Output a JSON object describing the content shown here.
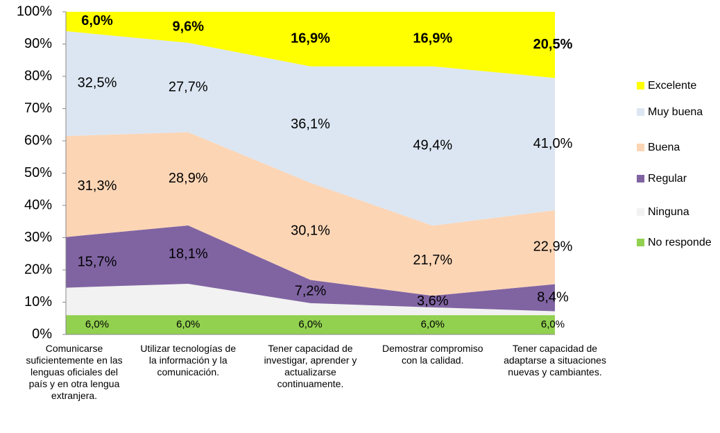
{
  "chart_data": {
    "type": "stacked_area",
    "categories": [
      "Comunicarse suficientemente en las lenguas oficiales del país y en otra lengua extranjera.",
      "Utilizar tecnologías de la información y la comunicación.",
      "Tener capacidad de investigar, aprender y actualizarse continuamente.",
      "Demostrar compromiso con la calidad.",
      "Tener capacidad de adaptarse a situaciones nuevas y cambiantes."
    ],
    "series": [
      {
        "name": "No responde",
        "color": "#92d050",
        "values": [
          6.0,
          6.0,
          6.0,
          6.0,
          6.0
        ],
        "value_labels": [
          "6,0%",
          "6,0%",
          "6,0%",
          "6,0%",
          "6,0%"
        ]
      },
      {
        "name": "Ninguna",
        "color": "#f2f2f2",
        "values": [
          8.5,
          9.7,
          3.7,
          2.4,
          1.2
        ]
      },
      {
        "name": "Regular",
        "color": "#8064a2",
        "values": [
          15.7,
          18.1,
          7.2,
          3.6,
          8.4
        ],
        "value_labels": [
          "15,7%",
          "18,1%",
          "7,2%",
          "3,6%",
          "8,4%"
        ]
      },
      {
        "name": "Buena",
        "color": "#fcd5b5",
        "values": [
          31.3,
          28.9,
          30.1,
          21.7,
          22.9
        ],
        "value_labels": [
          "31,3%",
          "28,9%",
          "30,1%",
          "21,7%",
          "22,9%"
        ]
      },
      {
        "name": "Muy buena",
        "color": "#dce6f2",
        "values": [
          32.5,
          27.7,
          36.1,
          49.4,
          41.0
        ],
        "value_labels": [
          "32,5%",
          "27,7%",
          "36,1%",
          "49,4%",
          "41,0%"
        ]
      },
      {
        "name": "Excelente",
        "color": "#ffff00",
        "values": [
          6.0,
          9.6,
          16.9,
          16.9,
          20.5
        ],
        "value_labels": [
          "6,0%",
          "9,6%",
          "16,9%",
          "16,9%",
          "20,5%"
        ],
        "bold_labels": true
      }
    ],
    "ylim": [
      0,
      100
    ],
    "yticks": [
      {
        "value": 0,
        "label": "0%"
      },
      {
        "value": 10,
        "label": "10%"
      },
      {
        "value": 20,
        "label": "20%"
      },
      {
        "value": 30,
        "label": "30%"
      },
      {
        "value": 40,
        "label": "40%"
      },
      {
        "value": 50,
        "label": "50%"
      },
      {
        "value": 60,
        "label": "60%"
      },
      {
        "value": 70,
        "label": "70%"
      },
      {
        "value": 80,
        "label": "80%"
      },
      {
        "value": 90,
        "label": "90%"
      },
      {
        "value": 100,
        "label": "100%"
      }
    ],
    "legend": "right"
  }
}
